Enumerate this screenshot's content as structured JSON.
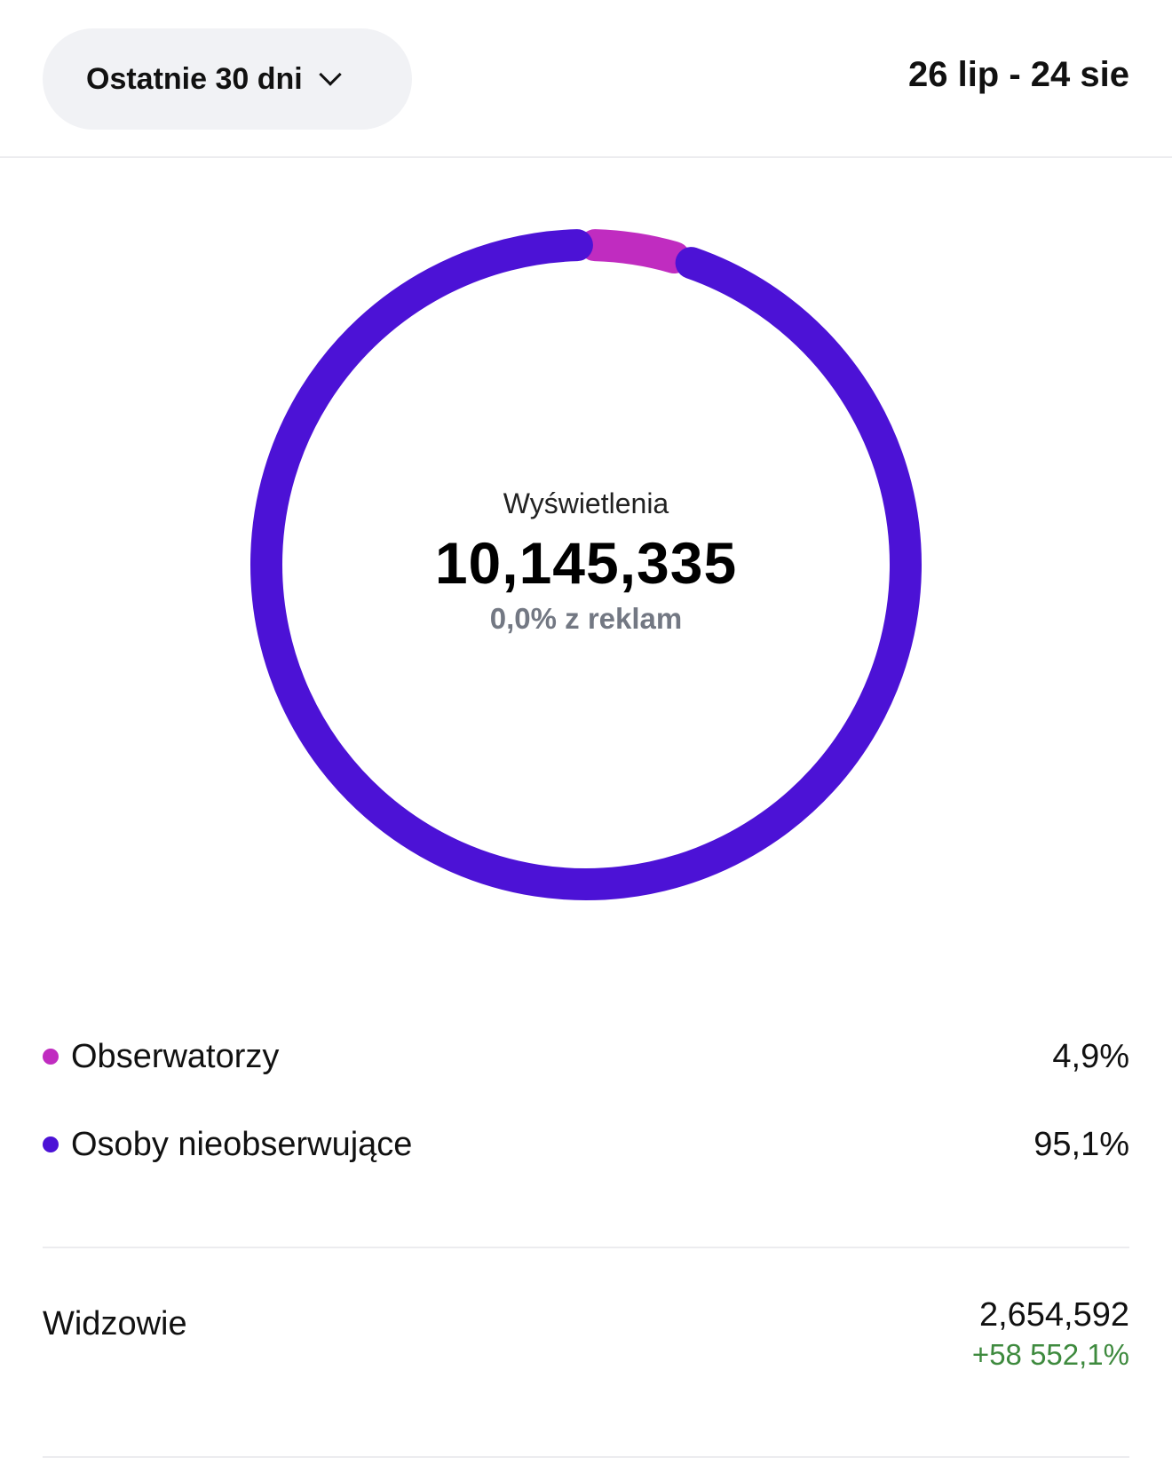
{
  "header": {
    "range_label": "Ostatnie 30 dni",
    "range_icon": "chevron-down-icon",
    "date_range": "26 lip - 24 sie"
  },
  "chart_data": {
    "type": "pie",
    "style": "donut",
    "categories": [
      "Obserwatorzy",
      "Osoby nieobserwujące"
    ],
    "values": [
      4.9,
      95.1
    ],
    "colors": [
      "#c02cc0",
      "#4c12d6"
    ],
    "center": {
      "label": "Wyświetlenia",
      "value": "10,145,335",
      "sub": "0,0% z reklam"
    }
  },
  "legend": {
    "items": [
      {
        "label": "Obserwatorzy",
        "value": "4,9%",
        "color": "#c02cc0"
      },
      {
        "label": "Osoby nieobserwujące",
        "value": "95,1%",
        "color": "#4c12d6"
      }
    ]
  },
  "metrics": {
    "viewers_label": "Widzowie",
    "viewers_value": "2,654,592",
    "viewers_change": "+58 552,1%",
    "change_color": "#3e8a3e"
  }
}
